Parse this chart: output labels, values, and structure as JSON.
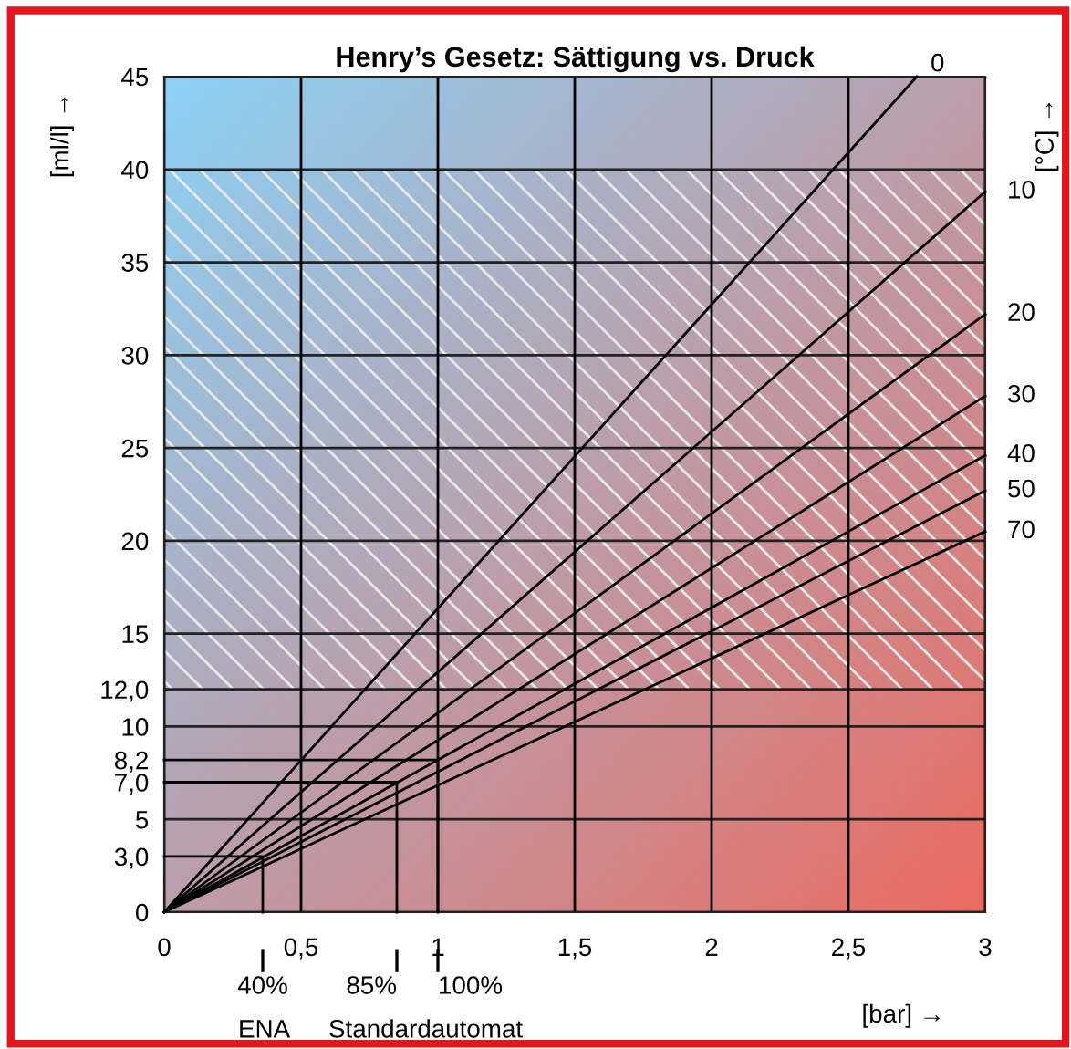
{
  "chart_data": {
    "type": "line",
    "title": "Henry’s Gesetz: Sättigung vs. Druck",
    "xlabel": "[bar] →",
    "ylabel": "[ml/l] →",
    "y2label": "[°C] →",
    "xlim": [
      0,
      3
    ],
    "ylim": [
      0,
      45
    ],
    "xticks": [
      0,
      {
        "value": 0.5,
        "label": "0,5"
      },
      1,
      {
        "value": 1.5,
        "label": "1,5"
      },
      2,
      {
        "value": 2.5,
        "label": "2,5"
      },
      3
    ],
    "yticks": [
      0,
      {
        "value": 3.0,
        "label": "3,0"
      },
      5,
      {
        "value": 7.0,
        "label": "7,0"
      },
      {
        "value": 8.2,
        "label": "8,2"
      },
      10,
      {
        "value": 12.0,
        "label": "12,0"
      },
      15,
      20,
      25,
      30,
      35,
      40,
      45
    ],
    "grid": true,
    "legend": "bottom",
    "bands": [
      {
        "axis": "y",
        "from": 12,
        "to": 40
      }
    ],
    "series": [
      {
        "name": "0",
        "color": "#000000",
        "x": [
          0,
          2.75
        ],
        "values": [
          0,
          45
        ]
      },
      {
        "name": "10",
        "color": "#000000",
        "x": [
          0,
          3
        ],
        "values": [
          0,
          38.8
        ]
      },
      {
        "name": "20",
        "color": "#000000",
        "x": [
          0,
          3
        ],
        "values": [
          0,
          32.2
        ]
      },
      {
        "name": "30",
        "color": "#000000",
        "x": [
          0,
          3
        ],
        "values": [
          0,
          27.8
        ]
      },
      {
        "name": "40",
        "color": "#000000",
        "x": [
          0,
          3
        ],
        "values": [
          0,
          24.6
        ]
      },
      {
        "name": "50",
        "color": "#000000",
        "x": [
          0,
          3
        ],
        "values": [
          0,
          22.7
        ]
      },
      {
        "name": "70",
        "color": "#000000",
        "x": [
          0,
          3
        ],
        "values": [
          0,
          20.5
        ]
      },
      {
        "name": "40%",
        "color": "#000000",
        "x": [
          0,
          0.36,
          0.36
        ],
        "values": [
          3.0,
          3.0,
          0
        ]
      },
      {
        "name": "85%",
        "color": "#000000",
        "x": [
          0,
          0.85,
          0.85
        ],
        "values": [
          7.0,
          7.0,
          0
        ]
      },
      {
        "name": "100%",
        "color": "#000000",
        "x": [
          0,
          1,
          1
        ],
        "values": [
          8.2,
          8.2,
          0
        ]
      }
    ],
    "annotations": [
      "ENA",
      "Standardautomat"
    ]
  }
}
